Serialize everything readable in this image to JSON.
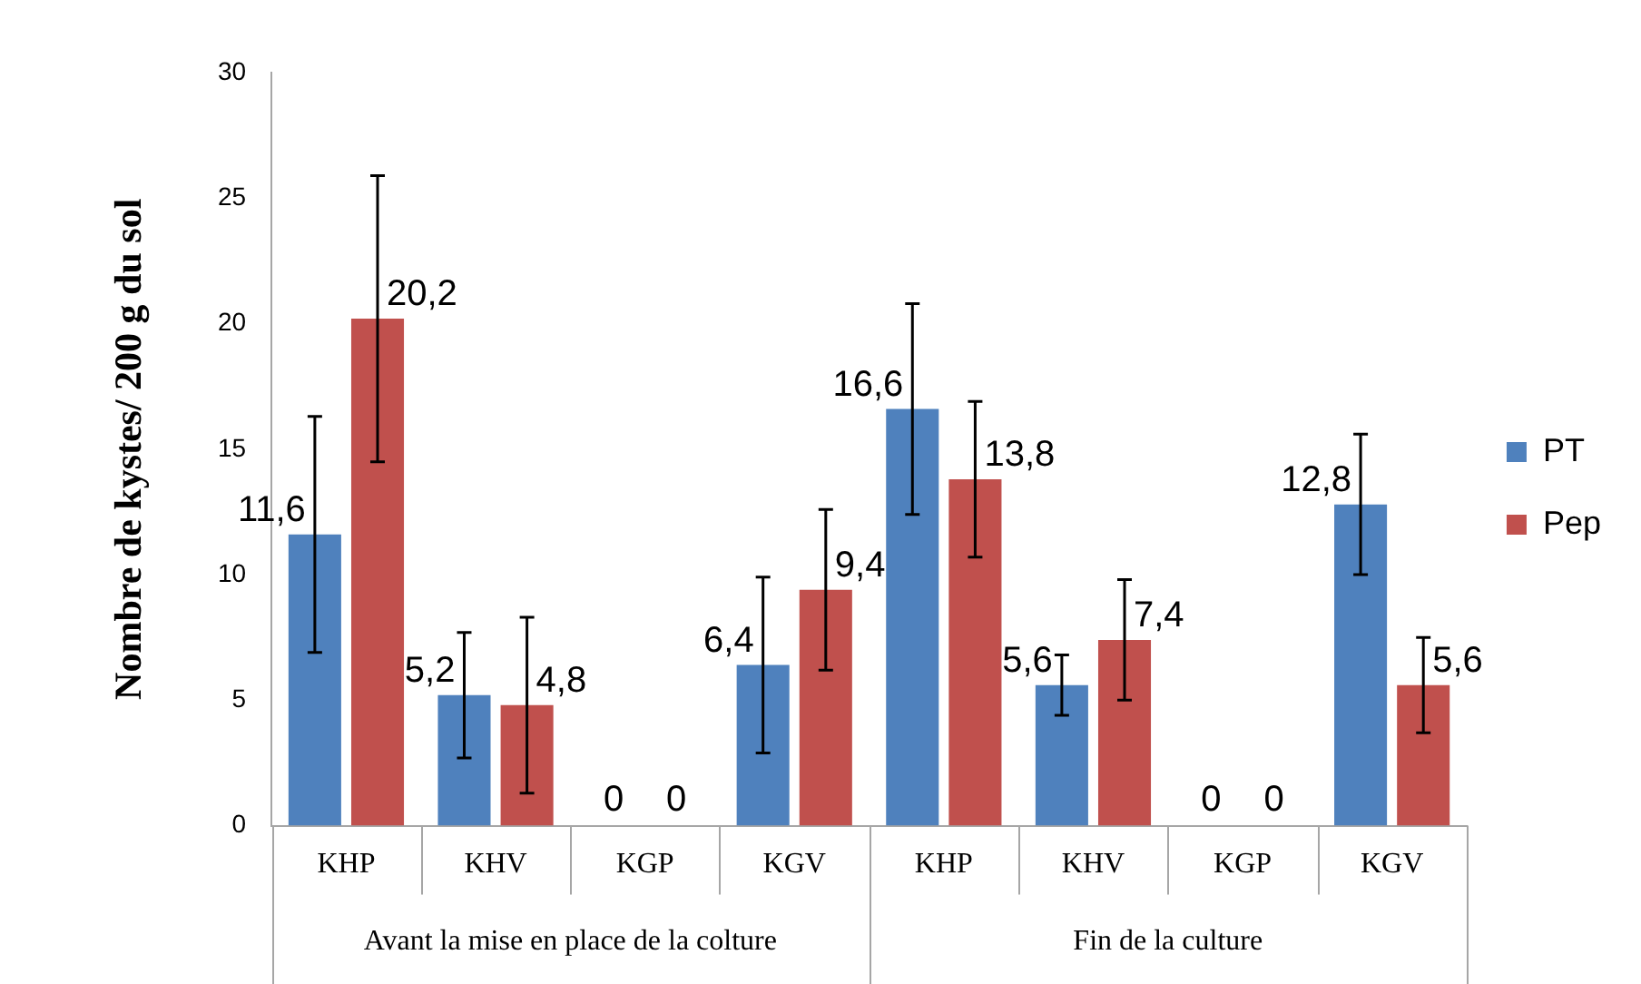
{
  "chart_data": {
    "type": "bar",
    "ylabel": "Nombre de kystes/ 200 g du sol",
    "categories": [
      "KHP",
      "KHV",
      "KGP",
      "KGV",
      "KHP",
      "KHV",
      "KGP",
      "KGV"
    ],
    "annotations": [
      "Avant la mise en place de la colture",
      "Fin de la culture"
    ],
    "ylim": [
      0,
      30
    ],
    "yticks": [
      0,
      5,
      10,
      15,
      20,
      25,
      30
    ],
    "grid": false,
    "legend": "right",
    "series": [
      {
        "name": "PT",
        "color": "#4f81bd",
        "values": [
          11.6,
          5.2,
          0,
          6.4,
          16.6,
          5.6,
          0,
          12.8
        ],
        "errors": [
          4.7,
          2.5,
          null,
          3.5,
          4.2,
          1.2,
          null,
          2.8
        ],
        "value_labels": [
          "11,6",
          "5,2",
          "0",
          "6,4",
          "16,6",
          "5,6",
          "0",
          "12,8"
        ]
      },
      {
        "name": "Pep",
        "color": "#c0504d",
        "values": [
          20.2,
          4.8,
          0,
          9.4,
          13.8,
          7.4,
          0,
          5.6
        ],
        "errors": [
          5.7,
          3.5,
          null,
          3.2,
          3.1,
          2.4,
          null,
          1.9
        ],
        "value_labels": [
          "20,2",
          "4,8",
          "0",
          "9,4",
          "13,8",
          "7,4",
          "0",
          "5,6"
        ]
      }
    ]
  }
}
